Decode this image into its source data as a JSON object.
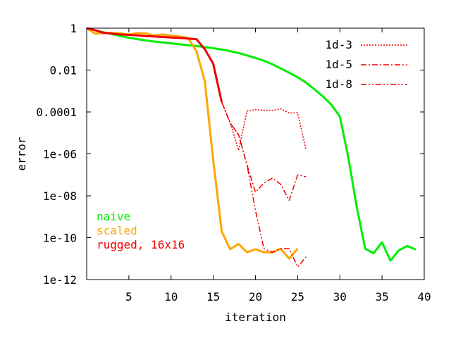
{
  "chart_data": {
    "type": "line",
    "xlabel": "iteration",
    "ylabel": "error",
    "xlim": [
      0,
      40
    ],
    "ylim": [
      1e-12,
      1
    ],
    "y_scale": "log",
    "grid": false,
    "legend_position": "top-right",
    "x_ticks": [
      5,
      10,
      15,
      20,
      25,
      30,
      35,
      40
    ],
    "x_tick_labels": [
      "5",
      "10",
      "15",
      "20",
      "25",
      "30",
      "35",
      "40"
    ],
    "y_ticks": [
      1,
      0.01,
      0.0001,
      1e-06,
      1e-08,
      1e-10,
      1e-12
    ],
    "y_tick_labels": [
      "1",
      "0.01",
      "0.0001",
      "1e-06",
      "1e-08",
      "1e-10",
      "1e-12"
    ],
    "annotations": [
      {
        "text": "naive",
        "color": "#00ee00"
      },
      {
        "text": "scaled",
        "color": "#ffa500"
      },
      {
        "text": "rugged, 16x16",
        "color": "#ee0000"
      }
    ],
    "series": [
      {
        "name": "naive",
        "color": "#00ee00",
        "dash": "solid",
        "in_legend": false,
        "x": [
          0,
          1,
          2,
          3,
          4,
          5,
          6,
          7,
          8,
          9,
          10,
          11,
          12,
          13,
          14,
          15,
          16,
          17,
          18,
          19,
          20,
          21,
          22,
          23,
          24,
          25,
          26,
          27,
          28,
          29,
          30,
          31,
          32,
          33,
          34,
          35,
          36,
          37,
          38,
          39
        ],
        "y": [
          1,
          0.8,
          0.64,
          0.52,
          0.42,
          0.35,
          0.3,
          0.26,
          0.23,
          0.21,
          0.19,
          0.17,
          0.155,
          0.14,
          0.125,
          0.11,
          0.095,
          0.08,
          0.065,
          0.05,
          0.038,
          0.028,
          0.019,
          0.012,
          0.0075,
          0.0045,
          0.0025,
          0.0012,
          0.00055,
          0.00022,
          6e-05,
          7e-07,
          3e-09,
          3e-11,
          1.8e-11,
          6e-11,
          8e-12,
          2.5e-11,
          4e-11,
          2.7e-11
        ]
      },
      {
        "name": "scaled",
        "color": "#ffa500",
        "dash": "solid",
        "in_legend": false,
        "x": [
          0,
          1,
          2,
          3,
          4,
          5,
          6,
          7,
          8,
          9,
          10,
          11,
          12,
          13,
          14,
          15,
          16,
          17,
          18,
          19,
          20,
          21,
          22,
          23,
          24,
          25
        ],
        "y": [
          1,
          0.55,
          0.58,
          0.6,
          0.56,
          0.5,
          0.58,
          0.56,
          0.45,
          0.5,
          0.44,
          0.4,
          0.35,
          0.08,
          0.003,
          5e-07,
          2e-10,
          2.8e-11,
          5e-11,
          2e-11,
          2.8e-11,
          2e-11,
          2e-11,
          3e-11,
          1e-11,
          3e-11
        ]
      },
      {
        "name": "1d-3",
        "color": "#ee0000",
        "dash": "dotted",
        "in_legend": true,
        "x": [
          0,
          1,
          2,
          3,
          4,
          5,
          6,
          7,
          8,
          9,
          10,
          11,
          12,
          13,
          14,
          15,
          16,
          17,
          18,
          19,
          20,
          21,
          22,
          23,
          24,
          25,
          26
        ],
        "y": [
          1,
          0.8,
          0.6,
          0.55,
          0.5,
          0.48,
          0.45,
          0.42,
          0.4,
          0.38,
          0.36,
          0.34,
          0.32,
          0.3,
          0.1,
          0.02,
          0.0003,
          3e-05,
          1.5e-06,
          0.00011,
          0.00013,
          0.00012,
          0.00012,
          0.00014,
          9e-05,
          9e-05,
          1.5e-06
        ]
      },
      {
        "name": "1d-5",
        "color": "#ee0000",
        "dash": "dashdot",
        "in_legend": true,
        "x": [
          0,
          1,
          2,
          3,
          4,
          5,
          6,
          7,
          8,
          9,
          10,
          11,
          12,
          13,
          14,
          15,
          16,
          17,
          18,
          19,
          20,
          21,
          22,
          23,
          24,
          25,
          26
        ],
        "y": [
          1,
          0.8,
          0.6,
          0.55,
          0.5,
          0.48,
          0.45,
          0.42,
          0.4,
          0.38,
          0.36,
          0.34,
          0.32,
          0.3,
          0.1,
          0.02,
          0.0003,
          3e-05,
          8e-06,
          3e-07,
          1.5e-08,
          4e-08,
          7e-08,
          3.5e-08,
          6e-09,
          1e-07,
          8e-08
        ]
      },
      {
        "name": "1d-8",
        "color": "#ee0000",
        "dash": "dashdotdot",
        "in_legend": true,
        "x": [
          0,
          1,
          2,
          3,
          4,
          5,
          6,
          7,
          8,
          9,
          10,
          11,
          12,
          13,
          14,
          15,
          16,
          17,
          18,
          19,
          20,
          21,
          22,
          23,
          24,
          25,
          26
        ],
        "y": [
          1,
          0.8,
          0.6,
          0.55,
          0.5,
          0.48,
          0.45,
          0.42,
          0.4,
          0.38,
          0.36,
          0.34,
          0.32,
          0.3,
          0.1,
          0.02,
          0.0003,
          3e-05,
          8e-06,
          3e-07,
          2e-09,
          3e-11,
          2e-11,
          3e-11,
          3e-11,
          4e-12,
          1.2e-11
        ]
      },
      {
        "name": "rugged, 16x16",
        "color": "#ee0000",
        "dash": "solid",
        "in_legend": false,
        "x": [
          0,
          1,
          2,
          3,
          4,
          5,
          6,
          7,
          8,
          9,
          10,
          11,
          12,
          13,
          14,
          15,
          16
        ],
        "y": [
          1,
          0.8,
          0.6,
          0.55,
          0.5,
          0.48,
          0.45,
          0.42,
          0.4,
          0.38,
          0.36,
          0.34,
          0.32,
          0.3,
          0.1,
          0.02,
          0.0003
        ]
      }
    ]
  }
}
